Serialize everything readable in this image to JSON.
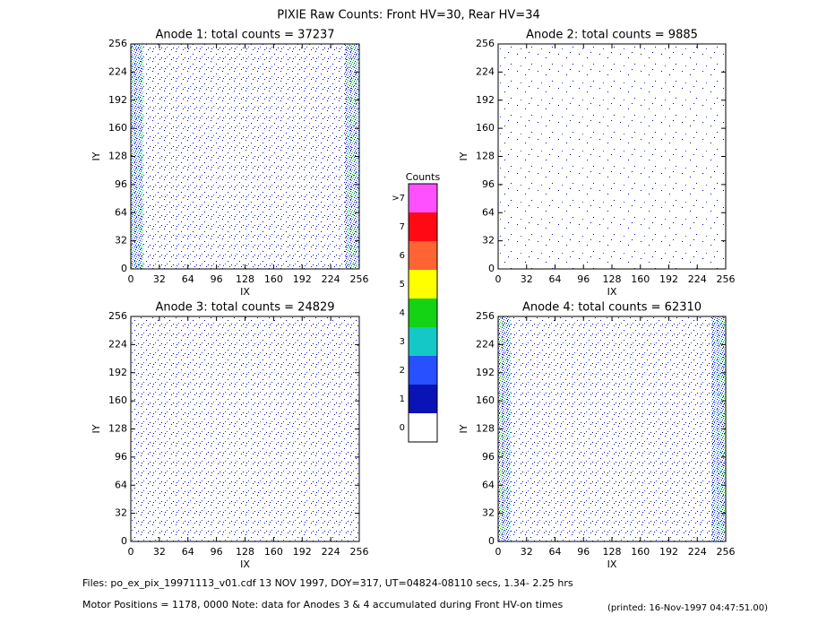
{
  "title": "PIXIE Raw Counts:  Front HV=30, Rear HV=34",
  "chart_data": [
    {
      "type": "heatmap",
      "title": "Anode 1: total counts = 37237",
      "xlabel": "IX",
      "ylabel": "IY",
      "xlim": [
        0,
        256
      ],
      "ylim": [
        0,
        256
      ],
      "xticks": [
        0,
        32,
        64,
        96,
        128,
        160,
        192,
        224,
        256
      ],
      "yticks": [
        0,
        32,
        64,
        96,
        128,
        160,
        192,
        224,
        256
      ]
    },
    {
      "type": "heatmap",
      "title": "Anode 2: total counts = 9885",
      "xlabel": "IX",
      "ylabel": "IY",
      "xlim": [
        0,
        256
      ],
      "ylim": [
        0,
        256
      ],
      "xticks": [
        0,
        32,
        64,
        96,
        128,
        160,
        192,
        224,
        256
      ],
      "yticks": [
        0,
        32,
        64,
        96,
        128,
        160,
        192,
        224,
        256
      ]
    },
    {
      "type": "heatmap",
      "title": "Anode 3: total counts = 24829",
      "xlabel": "IX",
      "ylabel": "IY",
      "xlim": [
        0,
        256
      ],
      "ylim": [
        0,
        256
      ],
      "xticks": [
        0,
        32,
        64,
        96,
        128,
        160,
        192,
        224,
        256
      ],
      "yticks": [
        0,
        32,
        64,
        96,
        128,
        160,
        192,
        224,
        256
      ]
    },
    {
      "type": "heatmap",
      "title": "Anode 4: total counts = 62310",
      "xlabel": "IX",
      "ylabel": "IY",
      "xlim": [
        0,
        256
      ],
      "ylim": [
        0,
        256
      ],
      "xticks": [
        0,
        32,
        64,
        96,
        128,
        160,
        192,
        224,
        256
      ],
      "yticks": [
        0,
        32,
        64,
        96,
        128,
        160,
        192,
        224,
        256
      ]
    }
  ],
  "colorbar": {
    "title": "Counts",
    "ticks": [
      0,
      1,
      2,
      3,
      4,
      5,
      6,
      7,
      {
        "value": 8,
        "label": ">7"
      }
    ],
    "colors": [
      "#ffffff",
      "#0a14b4",
      "#2850ff",
      "#14c8c8",
      "#14d214",
      "#ffff00",
      "#ff6432",
      "#ff0a14",
      "#ff50ff"
    ]
  },
  "footer": [
    "Files: po_ex_pix_19971113_v01.cdf    13 NOV 1997, DOY=317, UT=04824-08110 secs,  1.34- 2.25 hrs",
    "Motor Positions = 1178, 0000   Note: data for Anodes 3 & 4 accumulated during Front HV-on times",
    "(printed: 16-Nov-1997 04:47:51.00)"
  ]
}
